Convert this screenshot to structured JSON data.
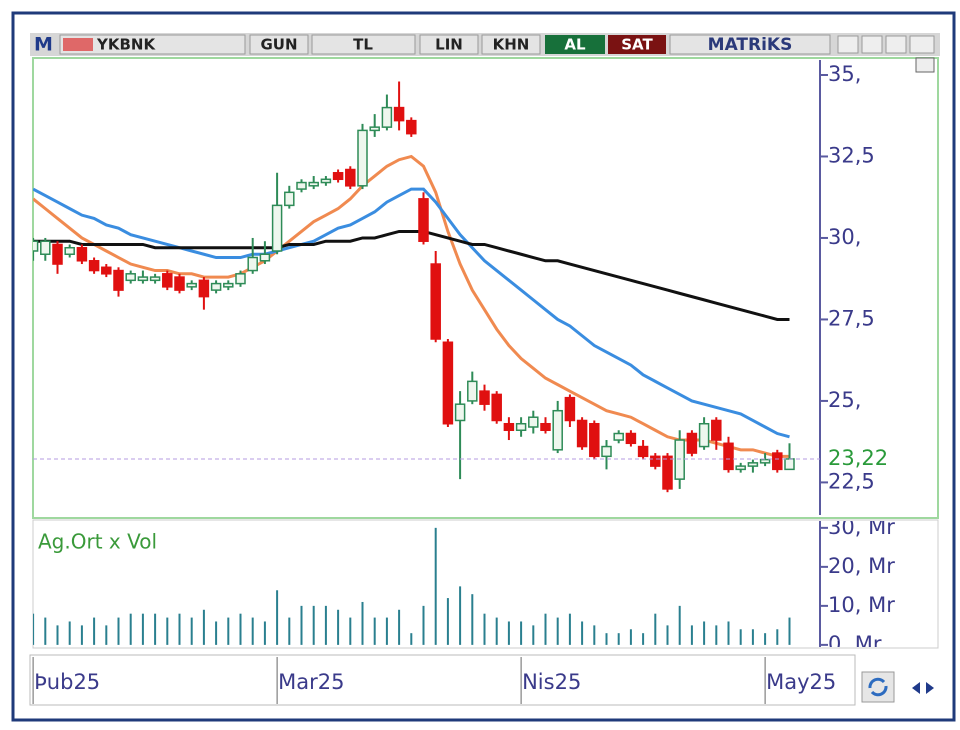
{
  "toolbar": {
    "logo": "M",
    "symbol": "YKBNK",
    "period": "GUN",
    "currency": "TL",
    "scale": "LIN",
    "mode": "KHN",
    "buy": "AL",
    "sell": "SAT",
    "brand": "MATRiKS"
  },
  "chart_data": [
    {
      "type": "candlestick",
      "categories": [
        "Þub25",
        null,
        null,
        null,
        null,
        null,
        null,
        null,
        null,
        null,
        null,
        null,
        null,
        null,
        null,
        null,
        null,
        null,
        null,
        null,
        "Mar25",
        null,
        null,
        null,
        null,
        null,
        null,
        null,
        null,
        null,
        null,
        null,
        null,
        null,
        null,
        null,
        null,
        null,
        null,
        null,
        "Nis25",
        null,
        null,
        null,
        null,
        null,
        null,
        null,
        null,
        null,
        null,
        null,
        null,
        null,
        null,
        null,
        null,
        null,
        null,
        null,
        "May25",
        null,
        null
      ],
      "open": [
        29.6,
        29.5,
        29.8,
        29.5,
        29.7,
        29.3,
        29.1,
        29.0,
        28.7,
        28.7,
        28.7,
        28.9,
        28.8,
        28.5,
        28.7,
        28.4,
        28.5,
        28.6,
        29.0,
        29.3,
        29.6,
        31.0,
        31.5,
        31.6,
        31.7,
        32.0,
        32.1,
        31.6,
        33.3,
        33.4,
        34.0,
        33.6,
        31.2,
        29.2,
        26.8,
        24.4,
        25.0,
        25.3,
        25.2,
        24.3,
        24.1,
        24.2,
        24.3,
        23.5,
        25.1,
        24.4,
        24.3,
        23.3,
        23.8,
        24.0,
        23.6,
        23.3,
        23.3,
        22.6,
        24.0,
        23.6,
        24.4,
        23.7,
        22.9,
        23.0,
        23.1,
        23.4,
        22.9
      ],
      "high": [
        30.0,
        30.0,
        29.9,
        29.8,
        29.8,
        29.4,
        29.2,
        29.1,
        29.0,
        29.0,
        28.9,
        29.0,
        28.9,
        28.7,
        28.8,
        28.7,
        28.7,
        29.0,
        30.0,
        29.9,
        32.0,
        31.6,
        31.8,
        31.9,
        31.9,
        32.1,
        32.2,
        33.5,
        33.8,
        34.4,
        34.8,
        33.7,
        31.4,
        29.6,
        26.9,
        25.3,
        25.9,
        25.5,
        25.3,
        24.5,
        24.5,
        24.7,
        24.5,
        25.0,
        25.2,
        24.5,
        24.4,
        23.8,
        24.1,
        24.1,
        23.8,
        23.4,
        23.4,
        24.1,
        24.1,
        24.5,
        24.5,
        23.9,
        23.1,
        23.2,
        23.4,
        23.5,
        23.7
      ],
      "low": [
        29.3,
        29.3,
        28.9,
        29.4,
        29.2,
        28.9,
        28.8,
        28.2,
        28.6,
        28.6,
        28.6,
        28.4,
        28.3,
        28.4,
        27.8,
        28.3,
        28.4,
        28.5,
        28.9,
        29.2,
        29.5,
        30.9,
        31.4,
        31.5,
        31.6,
        31.7,
        31.5,
        31.5,
        33.1,
        33.3,
        33.3,
        33.1,
        29.8,
        26.8,
        24.2,
        22.6,
        24.9,
        24.7,
        24.3,
        23.8,
        23.9,
        24.0,
        24.0,
        23.4,
        24.2,
        23.5,
        23.2,
        22.9,
        23.7,
        23.6,
        23.2,
        22.9,
        22.2,
        22.3,
        23.3,
        23.5,
        23.5,
        22.8,
        22.8,
        22.8,
        23.0,
        22.8,
        22.9
      ],
      "close": [
        29.9,
        29.9,
        29.2,
        29.7,
        29.3,
        29.0,
        28.9,
        28.4,
        28.9,
        28.8,
        28.8,
        28.5,
        28.4,
        28.6,
        28.2,
        28.6,
        28.6,
        28.9,
        29.4,
        29.5,
        31.0,
        31.4,
        31.7,
        31.7,
        31.8,
        31.8,
        31.6,
        33.3,
        33.4,
        34.0,
        33.6,
        33.2,
        29.9,
        26.9,
        24.3,
        24.9,
        25.6,
        24.9,
        24.4,
        24.1,
        24.3,
        24.5,
        24.1,
        24.7,
        24.4,
        23.6,
        23.3,
        23.6,
        24.0,
        23.7,
        23.3,
        23.0,
        22.3,
        23.8,
        23.4,
        24.3,
        23.8,
        22.9,
        23.0,
        23.1,
        23.2,
        22.9,
        23.22
      ],
      "up_color": "#2e8b57",
      "down_color": "#e01010",
      "lines": [
        {
          "color": "#f08a50",
          "values": [
            31.2,
            30.9,
            30.6,
            30.3,
            30.0,
            29.8,
            29.6,
            29.4,
            29.2,
            29.1,
            29.0,
            29.0,
            28.9,
            28.9,
            28.8,
            28.8,
            28.8,
            28.9,
            29.1,
            29.3,
            29.6,
            29.9,
            30.2,
            30.5,
            30.7,
            30.9,
            31.2,
            31.6,
            31.9,
            32.2,
            32.4,
            32.5,
            32.2,
            31.4,
            30.2,
            29.2,
            28.4,
            27.8,
            27.2,
            26.7,
            26.3,
            26.0,
            25.7,
            25.5,
            25.3,
            25.1,
            24.9,
            24.7,
            24.6,
            24.5,
            24.3,
            24.1,
            23.9,
            23.8,
            23.8,
            23.8,
            23.7,
            23.6,
            23.5,
            23.5,
            23.4,
            23.3,
            23.3
          ]
        },
        {
          "color": "#3a8de0",
          "values": [
            31.5,
            31.3,
            31.1,
            30.9,
            30.7,
            30.6,
            30.4,
            30.3,
            30.1,
            30.0,
            29.9,
            29.8,
            29.7,
            29.6,
            29.5,
            29.4,
            29.4,
            29.4,
            29.5,
            29.5,
            29.6,
            29.7,
            29.8,
            29.9,
            30.1,
            30.3,
            30.4,
            30.6,
            30.8,
            31.1,
            31.3,
            31.5,
            31.5,
            31.1,
            30.6,
            30.1,
            29.7,
            29.3,
            29.0,
            28.7,
            28.4,
            28.1,
            27.8,
            27.5,
            27.3,
            27.0,
            26.7,
            26.5,
            26.3,
            26.1,
            25.8,
            25.6,
            25.4,
            25.2,
            25.0,
            24.9,
            24.8,
            24.7,
            24.6,
            24.4,
            24.2,
            24.0,
            23.9
          ]
        },
        {
          "color": "#111111",
          "values": [
            29.9,
            29.9,
            29.9,
            29.9,
            29.8,
            29.8,
            29.8,
            29.8,
            29.8,
            29.8,
            29.7,
            29.7,
            29.7,
            29.7,
            29.7,
            29.7,
            29.7,
            29.7,
            29.7,
            29.7,
            29.7,
            29.8,
            29.8,
            29.8,
            29.9,
            29.9,
            29.9,
            30.0,
            30.0,
            30.1,
            30.2,
            30.2,
            30.2,
            30.1,
            30.0,
            29.9,
            29.8,
            29.8,
            29.7,
            29.6,
            29.5,
            29.4,
            29.3,
            29.3,
            29.2,
            29.1,
            29.0,
            28.9,
            28.8,
            28.7,
            28.6,
            28.5,
            28.4,
            28.3,
            28.2,
            28.1,
            28.0,
            27.9,
            27.8,
            27.7,
            27.6,
            27.5,
            27.5
          ]
        }
      ],
      "last_price": {
        "value": 23.22,
        "label": "23,22"
      },
      "ylim": [
        21.5,
        35.46
      ],
      "yticks": [
        {
          "value": 22.5,
          "label": "22,5"
        },
        {
          "value": 25,
          "label": "25,"
        },
        {
          "value": 27.5,
          "label": "27,5"
        },
        {
          "value": 30,
          "label": "30,"
        },
        {
          "value": 32.5,
          "label": "32,5"
        },
        {
          "value": 35,
          "label": "35,"
        }
      ]
    },
    {
      "type": "bar",
      "title": "Ag.Ort x Vol",
      "color": "#2a7f8f",
      "values": [
        8,
        7,
        5,
        6,
        5,
        7,
        5,
        7,
        8,
        8,
        8,
        7,
        8,
        7,
        9,
        6,
        7,
        8,
        7,
        6,
        14,
        7,
        10,
        10,
        10,
        9,
        7,
        11,
        7,
        7,
        9,
        3,
        10,
        30,
        12,
        15,
        13,
        8,
        7,
        6,
        6,
        5,
        8,
        7,
        8,
        6,
        5,
        3,
        3,
        4,
        3,
        8,
        5,
        10,
        5,
        6,
        5,
        6,
        4,
        4,
        3,
        4,
        7
      ],
      "ylim": [
        -0.8,
        31.5
      ],
      "yticks": [
        {
          "value": 0,
          "label": "0, Mr"
        },
        {
          "value": 10,
          "label": "10, Mr"
        },
        {
          "value": 20,
          "label": "20, Mr"
        },
        {
          "value": 30,
          "label": "30, Mr"
        }
      ]
    }
  ]
}
